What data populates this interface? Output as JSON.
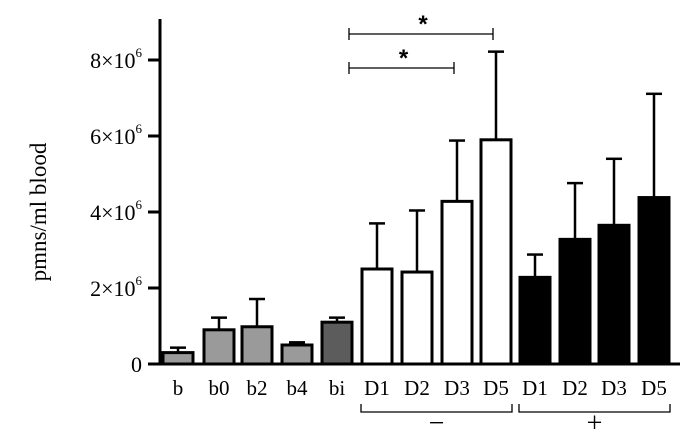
{
  "chart_data": {
    "type": "bar",
    "ylabel": "pmns/ml blood",
    "ylim": [
      0,
      8500000
    ],
    "yticks": [
      {
        "value": 0,
        "label": "0",
        "sup": ""
      },
      {
        "value": 2000000,
        "label": "2×10",
        "sup": "6"
      },
      {
        "value": 4000000,
        "label": "4×10",
        "sup": "6"
      },
      {
        "value": 6000000,
        "label": "6×10",
        "sup": "6"
      },
      {
        "value": 8000000,
        "label": "8×10",
        "sup": "6"
      }
    ],
    "categories": [
      "b",
      "b0",
      "b2",
      "b4",
      "bi",
      "D1",
      "D2",
      "D3",
      "D5",
      "D1",
      "D2",
      "D3",
      "D5"
    ],
    "values": [
      300000,
      900000,
      980000,
      500000,
      1100000,
      2500000,
      2420000,
      4280000,
      5900000,
      2280000,
      3280000,
      3650000,
      4380000
    ],
    "errors": [
      130000,
      320000,
      730000,
      70000,
      120000,
      1200000,
      1620000,
      1600000,
      2320000,
      600000,
      1480000,
      1750000,
      2730000
    ],
    "fills": [
      "#9a9a9a",
      "#9a9a9a",
      "#9a9a9a",
      "#9a9a9a",
      "#5c5c5c",
      "#ffffff",
      "#ffffff",
      "#ffffff",
      "#ffffff",
      "#000000",
      "#000000",
      "#000000",
      "#000000"
    ],
    "groups": [
      {
        "label": "−",
        "from": 5,
        "to": 8
      },
      {
        "label": "+",
        "from": 9,
        "to": 12
      }
    ],
    "significance": [
      {
        "from": 5,
        "to": 8,
        "label": "*"
      },
      {
        "from": 5,
        "to": 7,
        "label": "*"
      }
    ],
    "grid": false,
    "legend": "none"
  }
}
